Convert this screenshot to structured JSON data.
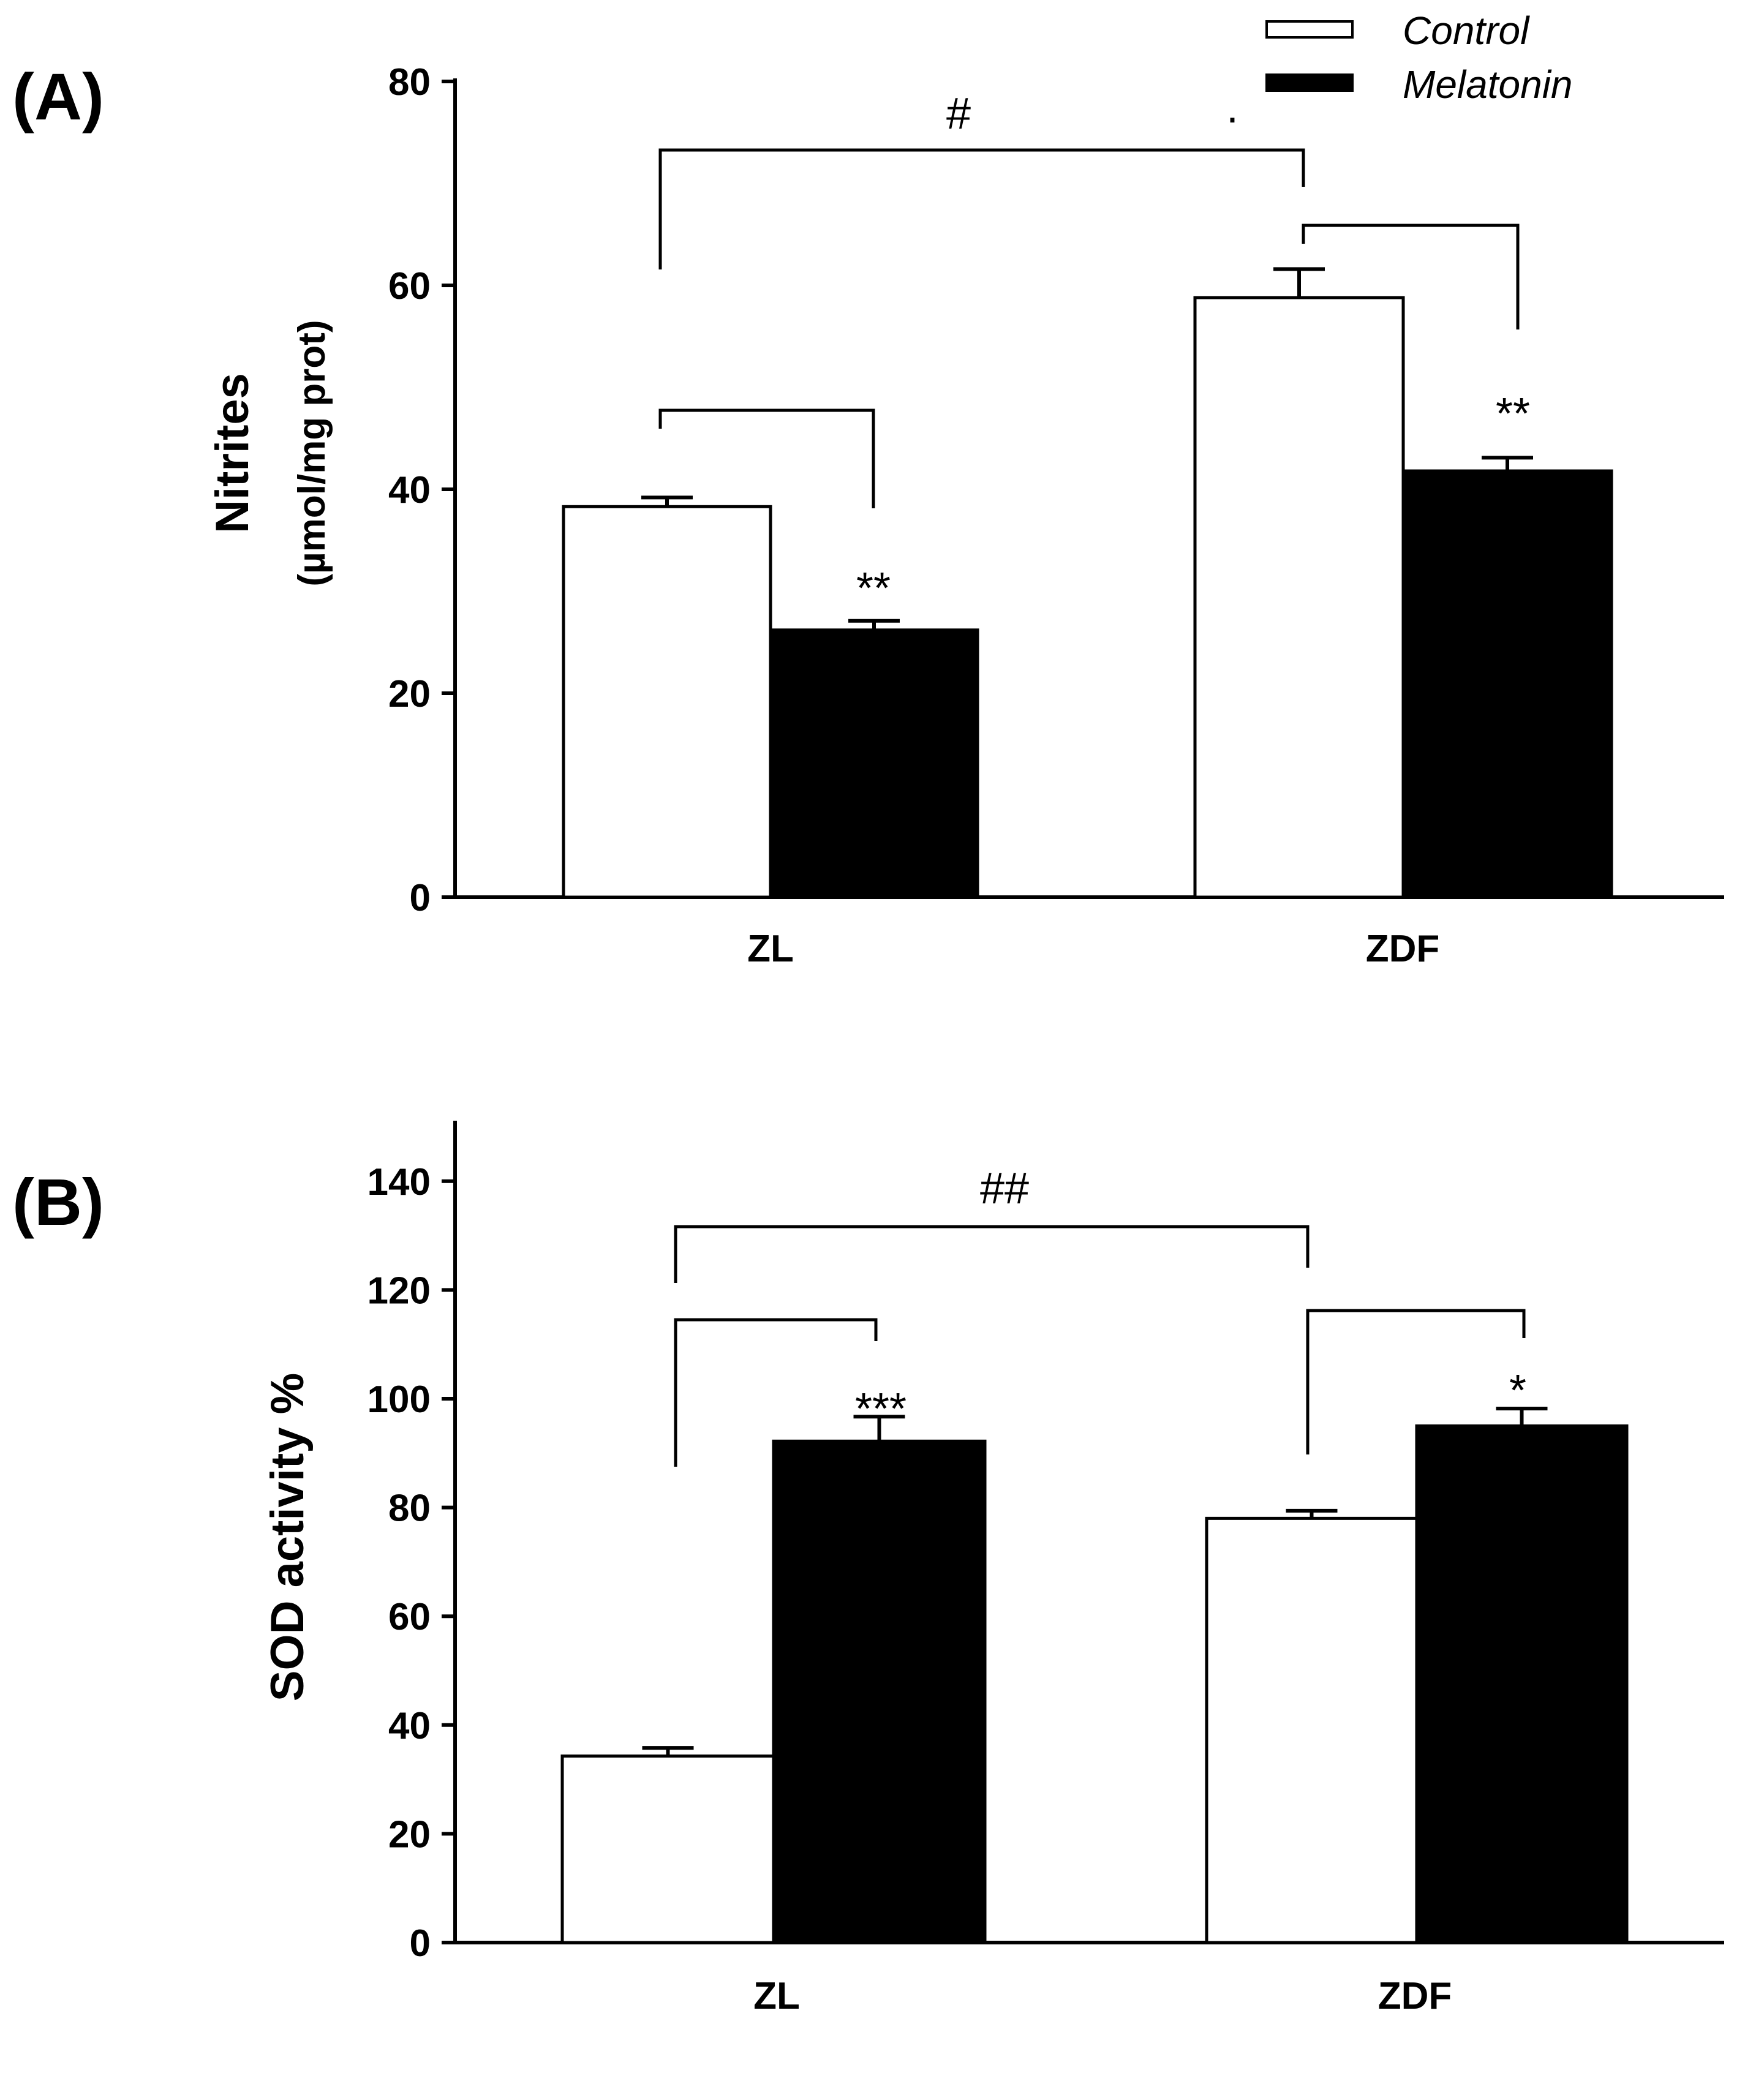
{
  "legend": {
    "entries": [
      {
        "name": "Control",
        "color": "#ffffff"
      },
      {
        "name": "Melatonin",
        "color": "#000000"
      }
    ]
  },
  "chart_data": [
    {
      "type": "bar",
      "panel_label": "(A)",
      "ylabel": "Nitrites",
      "ylabel_units": "(µmol/mg prot)",
      "categories": [
        "ZL",
        "ZDF"
      ],
      "series": [
        {
          "name": "Control",
          "values": [
            38.3,
            58.8
          ],
          "errors": [
            0.9,
            2.8
          ]
        },
        {
          "name": "Melatonin",
          "values": [
            26.2,
            41.8
          ],
          "errors": [
            0.9,
            1.3
          ]
        }
      ],
      "ylim": [
        0,
        80
      ],
      "yticks": [
        "0",
        "20",
        "40",
        "60",
        "80"
      ],
      "stray_mark": ".",
      "annotations": {
        "between_groups": "#",
        "within_ZL": "**",
        "within_ZDF": "**"
      }
    },
    {
      "type": "bar",
      "panel_label": "(B)",
      "ylabel": "SOD activity %",
      "categories": [
        "ZL",
        "ZDF"
      ],
      "series": [
        {
          "name": "Control",
          "values": [
            34.3,
            78
          ],
          "errors": [
            1.5,
            1.4
          ]
        },
        {
          "name": "Melatonin",
          "values": [
            92.2,
            95
          ],
          "errors": [
            4.5,
            3.2
          ]
        }
      ],
      "ylim": [
        0,
        150
      ],
      "yticks": [
        "0",
        "20",
        "40",
        "60",
        "80",
        "100",
        "120",
        "140"
      ],
      "annotations": {
        "between_groups": "##",
        "within_ZL": "***",
        "within_ZDF": "*"
      }
    }
  ]
}
